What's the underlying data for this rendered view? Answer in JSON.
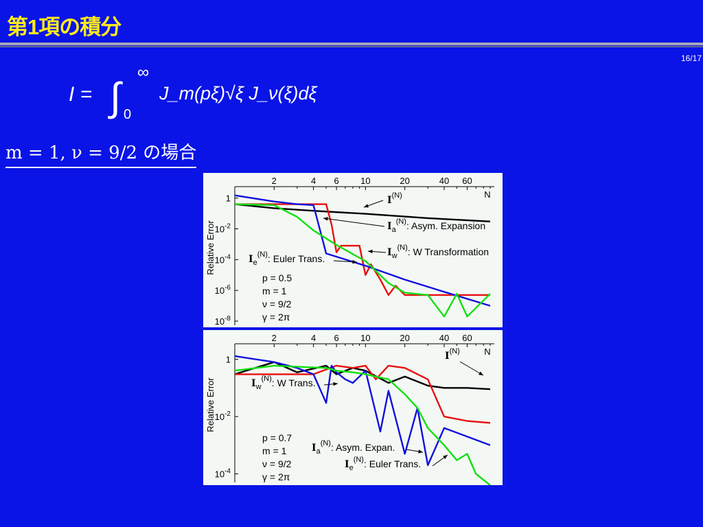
{
  "slide": {
    "title": "第1項の積分",
    "page": "16/17",
    "formula": {
      "lhs": "I =",
      "lower": "0",
      "upper": "∞",
      "integrand": "J_m(pξ)√ξ J_ν(ξ)dξ"
    },
    "case_label": "m = 1, ν = 9/2 の場合"
  },
  "chart_data": [
    {
      "type": "line",
      "ylabel": "Relative Error",
      "xlabel": "N",
      "x_scale": "log",
      "y_scale": "log",
      "xlim": [
        1,
        90
      ],
      "ylim": [
        1e-08,
        3
      ],
      "x_ticks": [
        2,
        4,
        6,
        10,
        20,
        40,
        60
      ],
      "y_ticks": [
        {
          "v": 1,
          "base": "1",
          "exp": ""
        },
        {
          "v": 0.01,
          "base": "10",
          "exp": "-2"
        },
        {
          "v": 0.0001,
          "base": "10",
          "exp": "-4"
        },
        {
          "v": 1e-06,
          "base": "10",
          "exp": "-6"
        },
        {
          "v": 1e-08,
          "base": "10",
          "exp": "-8"
        }
      ],
      "params": [
        "p = 0.5",
        "m = 1",
        "ν = 9/2",
        "γ = 2π"
      ],
      "annotations": [
        {
          "sym": "I",
          "sub": "",
          "sup": "(N)",
          "text": ""
        },
        {
          "sym": "I",
          "sub": "a",
          "sup": "(N)",
          "text": ": Asym. Expansion"
        },
        {
          "sym": "I",
          "sub": "w",
          "sup": "(N)",
          "text": ": W Transformation"
        },
        {
          "sym": "I",
          "sub": "e",
          "sup": "(N)",
          "text": ": Euler Trans."
        }
      ],
      "series": [
        {
          "color": "#000000",
          "x": [
            1,
            2,
            4,
            10,
            30,
            90
          ],
          "y": [
            0.4,
            0.22,
            0.15,
            0.095,
            0.05,
            0.03
          ]
        },
        {
          "color": "#e81010",
          "x": [
            1,
            2,
            5,
            5.5,
            6,
            6.5,
            7,
            8,
            9,
            10,
            11,
            13,
            15,
            17,
            20,
            30,
            90
          ],
          "y": [
            0.4,
            0.4,
            0.4,
            0.02,
            0.0003,
            0.0008,
            0.0008,
            0.0008,
            0.0008,
            1e-05,
            5e-05,
            5e-06,
            5e-07,
            2e-06,
            5e-07,
            5e-07,
            5e-07
          ]
        },
        {
          "color": "#1010e0",
          "x": [
            1,
            2,
            3,
            4,
            5,
            10,
            20,
            40,
            90
          ],
          "y": [
            1.5,
            0.6,
            0.4,
            0.35,
            0.00025,
            4e-05,
            5e-06,
            8e-07,
            1e-07
          ]
        },
        {
          "color": "#10e010",
          "x": [
            1,
            2,
            3,
            4,
            6,
            10,
            15,
            20,
            30,
            40,
            50,
            60,
            90
          ],
          "y": [
            0.4,
            0.35,
            0.06,
            0.008,
            0.0009,
            8e-05,
            3e-06,
            7e-07,
            5e-07,
            2e-08,
            6e-07,
            2e-08,
            6e-07
          ]
        }
      ]
    },
    {
      "type": "line",
      "ylabel": "Relative Error",
      "xlabel": "N",
      "x_scale": "log",
      "y_scale": "log",
      "xlim": [
        1,
        90
      ],
      "ylim": [
        7e-05,
        2.5
      ],
      "x_ticks": [
        2,
        4,
        6,
        10,
        20,
        40,
        60
      ],
      "y_ticks": [
        {
          "v": 1,
          "base": "1",
          "exp": ""
        },
        {
          "v": 0.01,
          "base": "10",
          "exp": "-2"
        },
        {
          "v": 0.0001,
          "base": "10",
          "exp": "-4"
        }
      ],
      "params": [
        "p = 0.7",
        "m = 1",
        "ν = 9/2",
        "γ = 2π"
      ],
      "annotations": [
        {
          "sym": "I",
          "sub": "",
          "sup": "(N)",
          "text": ""
        },
        {
          "sym": "I",
          "sub": "w",
          "sup": "(N)",
          "text": ": W Trans."
        },
        {
          "sym": "I",
          "sub": "a",
          "sup": "(N)",
          "text": ": Asym. Expan."
        },
        {
          "sym": "I",
          "sub": "e",
          "sup": "(N)",
          "text": ": Euler Trans."
        }
      ],
      "series": [
        {
          "color": "#000000",
          "x": [
            1,
            2,
            3,
            5,
            6,
            8,
            10,
            15,
            20,
            30,
            40,
            60,
            90
          ],
          "y": [
            0.3,
            0.8,
            0.35,
            0.6,
            0.3,
            0.5,
            0.4,
            0.15,
            0.25,
            0.12,
            0.1,
            0.1,
            0.09
          ]
        },
        {
          "color": "#e81010",
          "x": [
            1,
            4,
            6,
            8,
            10,
            12,
            15,
            20,
            30,
            40,
            60,
            90
          ],
          "y": [
            0.3,
            0.3,
            0.6,
            0.5,
            0.6,
            0.2,
            0.6,
            0.5,
            0.2,
            0.01,
            0.007,
            0.006
          ]
        },
        {
          "color": "#1010e0",
          "x": [
            1,
            2,
            3,
            4,
            5,
            5.5,
            6,
            7,
            8,
            10,
            13,
            15,
            20,
            25,
            30,
            40,
            60,
            90
          ],
          "y": [
            1.3,
            0.8,
            0.5,
            0.3,
            0.03,
            0.6,
            0.35,
            0.2,
            0.15,
            0.4,
            0.003,
            0.08,
            0.0005,
            0.02,
            0.0002,
            0.004,
            0.002,
            0.001
          ]
        },
        {
          "color": "#10e010",
          "x": [
            1,
            2,
            3,
            5,
            6,
            8,
            10,
            15,
            20,
            25,
            30,
            40,
            50,
            60,
            70,
            90
          ],
          "y": [
            0.4,
            0.6,
            0.55,
            0.5,
            0.4,
            0.35,
            0.3,
            0.2,
            0.06,
            0.02,
            0.004,
            0.001,
            0.0003,
            0.0005,
            0.0001,
            4e-05
          ]
        }
      ]
    }
  ]
}
